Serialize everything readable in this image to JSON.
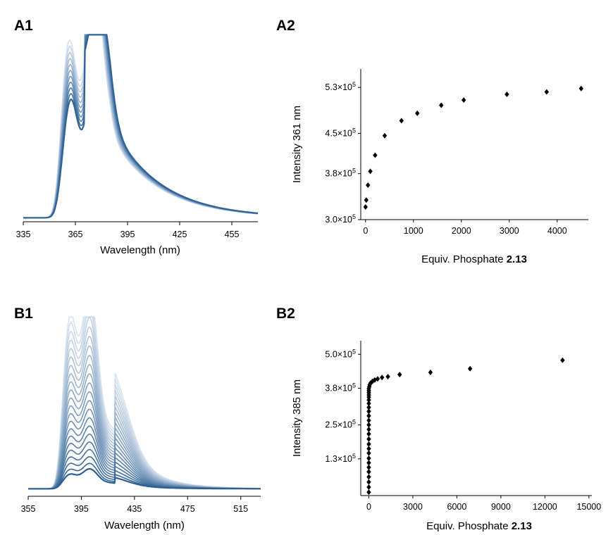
{
  "chart_data": [
    {
      "id": "A1",
      "type": "line",
      "panel_label": "A1",
      "xlabel": "Wavelength (nm)",
      "ylabel": "",
      "xticks": [
        "335",
        "365",
        "395",
        "425",
        "455"
      ],
      "xlim": [
        335,
        470
      ],
      "ylim": [
        0,
        1
      ],
      "grid": false,
      "series_count": 11,
      "color_light": "#d6e1ef",
      "color_dark": "#2f6398",
      "peaks_first": {
        "w1": 361,
        "h1": 0.93,
        "w2": 375,
        "h2": 0.9
      },
      "peaks_last": {
        "w1": 362,
        "h1": 0.62,
        "w2": 378,
        "h2": 0.74
      },
      "tail_first": 0.45,
      "tail_last": 0.52
    },
    {
      "id": "A2",
      "type": "scatter",
      "panel_label": "A2",
      "xlabel_main": "Equiv. Phosphate ",
      "xlabel_bold": "2.13",
      "ylabel": "Intensity 361 nm",
      "xlim": [
        -100,
        4650
      ],
      "ylim": [
        300000,
        562000
      ],
      "xticks": [
        0,
        1000,
        2000,
        3000,
        4000
      ],
      "yticks": [
        {
          "value": 300000,
          "mantissa": "3.0",
          "exp": "5"
        },
        {
          "value": 380000,
          "mantissa": "3.8",
          "exp": "5"
        },
        {
          "value": 450000,
          "mantissa": "4.5",
          "exp": "5"
        },
        {
          "value": 530000,
          "mantissa": "5.3",
          "exp": "5"
        }
      ],
      "marker": "diamond",
      "x": [
        0,
        15,
        50,
        100,
        200,
        400,
        750,
        1080,
        1580,
        2050,
        2950,
        3780,
        4500
      ],
      "y": [
        322000,
        334000,
        360000,
        384000,
        412000,
        446000,
        472000,
        485000,
        499000,
        508000,
        518000,
        522000,
        528000
      ]
    },
    {
      "id": "B1",
      "type": "line",
      "panel_label": "B1",
      "xlabel": "Wavelength (nm)",
      "ylabel": "",
      "xticks": [
        "355",
        "395",
        "435",
        "475",
        "515"
      ],
      "xlim": [
        355,
        530
      ],
      "ylim": [
        0,
        1
      ],
      "grid": false,
      "series_count": 22,
      "color_light": "#d9e4f1",
      "color_dark": "#2c5f93",
      "peaks_first": {
        "w1": 386,
        "h1": 0.96,
        "w2": 401,
        "h2": 1.0
      },
      "peaks_last": {
        "w1": 386,
        "h1": 0.08,
        "w2": 401,
        "h2": 0.1
      },
      "shoulder_first": 0.62,
      "shoulder_last": 0.06
    },
    {
      "id": "B2",
      "type": "scatter",
      "panel_label": "B2",
      "xlabel_main": "Equiv. Phosphate ",
      "xlabel_bold": "2.13",
      "ylabel": "Intensity 385 nm",
      "xlim": [
        -550,
        15200
      ],
      "ylim": [
        0,
        548000
      ],
      "xticks": [
        0,
        3000,
        6000,
        9000,
        12000,
        15000
      ],
      "yticks": [
        {
          "value": 130000,
          "mantissa": "1.3",
          "exp": "5"
        },
        {
          "value": 250000,
          "mantissa": "2.5",
          "exp": "5"
        },
        {
          "value": 380000,
          "mantissa": "3.8",
          "exp": "5"
        },
        {
          "value": 500000,
          "mantissa": "5.0",
          "exp": "5"
        }
      ],
      "marker": "diamond",
      "x": [
        0,
        0,
        0,
        0,
        0,
        0,
        0,
        0,
        0,
        0,
        0,
        0,
        0,
        0,
        0,
        0,
        0,
        0,
        0,
        0,
        0,
        0,
        0,
        0,
        0,
        0,
        30,
        60,
        120,
        250,
        400,
        600,
        900,
        1300,
        2100,
        4200,
        6900,
        13200
      ],
      "y": [
        12000,
        30000,
        48000,
        66000,
        84000,
        100000,
        116000,
        132000,
        150000,
        166000,
        182000,
        200000,
        218000,
        234000,
        250000,
        266000,
        282000,
        298000,
        312000,
        326000,
        338000,
        348000,
        356000,
        364000,
        371000,
        378000,
        385000,
        392000,
        398000,
        404000,
        409000,
        413000,
        418000,
        421000,
        428000,
        436000,
        449000,
        479000
      ]
    }
  ],
  "multiplier_symbol": "×10"
}
